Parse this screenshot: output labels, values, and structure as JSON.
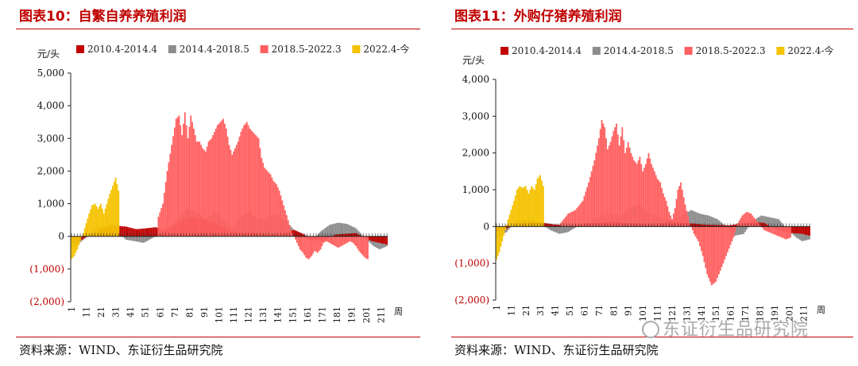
{
  "source": "资料来源：WIND、东证衍生品研究院",
  "watermark": "东证衍生品研究院",
  "colors": {
    "s1": "#c00000",
    "s2": "#8c8c8c",
    "s3": "#ff6060",
    "s4": "#f5c200",
    "title": "#c00000"
  },
  "chart_data": [
    {
      "type": "bar",
      "title": "图表10：自繁自养养殖利润",
      "ylabel": "元/头",
      "xlabel": "周",
      "ylim": [
        -2000,
        5000
      ],
      "yticks": [
        5000,
        4000,
        3000,
        2000,
        1000,
        0,
        -1000,
        -2000
      ],
      "ytick_labels": [
        "5,000",
        "4,000",
        "3,000",
        "2,000",
        "1,000",
        "0",
        "(1,000)",
        "(2,000)"
      ],
      "xticks": [
        "1",
        "11",
        "21",
        "31",
        "41",
        "51",
        "61",
        "71",
        "81",
        "91",
        "101",
        "111",
        "121",
        "131",
        "141",
        "151",
        "161",
        "171",
        "181",
        "191",
        "201",
        "211"
      ],
      "x_count": 215,
      "series": [
        {
          "name": "2010.4-2014.4",
          "color": "#c00000",
          "x": [
            1,
            8,
            14,
            20,
            27,
            33,
            38,
            45,
            52,
            58,
            64,
            71,
            77,
            83,
            89,
            96,
            103,
            110,
            116,
            120,
            125,
            132,
            138,
            145,
            152,
            158,
            165,
            172,
            180,
            188,
            194,
            200,
            205,
            210,
            215
          ],
          "values": [
            -200,
            -100,
            50,
            200,
            350,
            320,
            300,
            220,
            250,
            280,
            200,
            350,
            500,
            600,
            550,
            450,
            300,
            150,
            120,
            100,
            120,
            80,
            60,
            100,
            200,
            80,
            -100,
            -150,
            50,
            80,
            100,
            -50,
            -150,
            -200,
            -250
          ]
        },
        {
          "name": "2014.4-2018.5",
          "color": "#8c8c8c",
          "x": [
            1,
            8,
            14,
            20,
            26,
            32,
            38,
            44,
            50,
            56,
            62,
            68,
            74,
            80,
            86,
            92,
            98,
            104,
            110,
            116,
            122,
            128,
            134,
            140,
            146,
            152,
            158,
            164,
            170,
            176,
            182,
            188,
            194,
            200,
            206,
            210,
            215
          ],
          "values": [
            -350,
            -150,
            100,
            300,
            250,
            150,
            -100,
            -150,
            -200,
            -50,
            100,
            300,
            550,
            850,
            750,
            500,
            800,
            500,
            250,
            600,
            750,
            500,
            600,
            700,
            500,
            200,
            0,
            -150,
            150,
            350,
            420,
            380,
            250,
            -50,
            -300,
            -400,
            -300
          ]
        },
        {
          "name": "2018.5-2022.3",
          "color": "#ff6060",
          "x": [
            60,
            63,
            66,
            69,
            72,
            74,
            76,
            78,
            80,
            82,
            84,
            86,
            88,
            90,
            92,
            94,
            96,
            98,
            100,
            102,
            104,
            106,
            108,
            110,
            112,
            114,
            116,
            118,
            120,
            122,
            124,
            126,
            128,
            130,
            132,
            134,
            136,
            138,
            140,
            142,
            144,
            146,
            148,
            150,
            152,
            154,
            156,
            158,
            160,
            162,
            164,
            166,
            168,
            170,
            172,
            174,
            176,
            178,
            180,
            182,
            184,
            186,
            188,
            190,
            192,
            194,
            196,
            198,
            200,
            202
          ],
          "values": [
            600,
            1000,
            2000,
            2800,
            3600,
            3700,
            3100,
            3800,
            3000,
            3700,
            3300,
            2900,
            2900,
            2700,
            2600,
            2900,
            3000,
            3200,
            3400,
            3500,
            3600,
            3300,
            2800,
            2500,
            2700,
            2900,
            3200,
            3400,
            3500,
            3300,
            3200,
            3100,
            3000,
            2400,
            2100,
            2000,
            1900,
            1700,
            1600,
            1400,
            1100,
            800,
            500,
            200,
            0,
            -200,
            -400,
            -500,
            -650,
            -700,
            -600,
            -450,
            -500,
            -400,
            -200,
            -150,
            -200,
            -250,
            -300,
            -350,
            -300,
            -250,
            -200,
            -150,
            -200,
            -300,
            -450,
            -550,
            -650,
            -700
          ]
        },
        {
          "name": "2022.4-今",
          "color": "#f5c200",
          "x": [
            1,
            3,
            5,
            7,
            9,
            11,
            13,
            15,
            17,
            19,
            21,
            23,
            25,
            27,
            29,
            31,
            33
          ],
          "values": [
            -700,
            -600,
            -400,
            -150,
            100,
            400,
            700,
            950,
            1000,
            850,
            1000,
            700,
            1000,
            1300,
            1550,
            1800,
            1400
          ]
        }
      ]
    },
    {
      "type": "bar",
      "title": "图表11：外购仔猪养殖利润",
      "ylabel": "元/头",
      "xlabel": "周",
      "ylim": [
        -2000,
        4000
      ],
      "yticks": [
        4000,
        3000,
        2000,
        1000,
        0,
        -1000,
        -2000
      ],
      "ytick_labels": [
        "4,000",
        "3,000",
        "2,000",
        "1,000",
        "0",
        "(1,000)",
        "(2,000)"
      ],
      "xticks": [
        "1",
        "11",
        "21",
        "31",
        "41",
        "51",
        "61",
        "71",
        "81",
        "91",
        "101",
        "111",
        "121",
        "131",
        "141",
        "151",
        "161",
        "171",
        "181",
        "191",
        "201",
        "211"
      ],
      "x_count": 215,
      "series": [
        {
          "name": "2010.4-2014.4",
          "color": "#c00000",
          "x": [
            1,
            8,
            14,
            20,
            27,
            33,
            40,
            48,
            56,
            64,
            72,
            80,
            88,
            96,
            104,
            112,
            120,
            128,
            136,
            144,
            152,
            160,
            168,
            176,
            184,
            192,
            198,
            204,
            210,
            215
          ],
          "values": [
            -150,
            -50,
            50,
            100,
            150,
            100,
            60,
            40,
            50,
            80,
            100,
            150,
            100,
            80,
            60,
            50,
            150,
            100,
            80,
            50,
            40,
            30,
            80,
            120,
            100,
            -80,
            -150,
            -180,
            -200,
            -250
          ]
        },
        {
          "name": "2014.4-2018.5",
          "color": "#8c8c8c",
          "x": [
            1,
            8,
            14,
            20,
            26,
            32,
            38,
            44,
            50,
            56,
            62,
            68,
            74,
            80,
            86,
            92,
            98,
            104,
            110,
            116,
            122,
            128,
            134,
            140,
            146,
            152,
            158,
            164,
            170,
            176,
            182,
            188,
            194,
            200,
            206,
            210,
            215
          ],
          "values": [
            -300,
            -150,
            150,
            200,
            150,
            50,
            -100,
            -200,
            -150,
            0,
            100,
            200,
            300,
            350,
            300,
            500,
            600,
            400,
            300,
            200,
            150,
            300,
            450,
            350,
            300,
            200,
            0,
            -250,
            -200,
            150,
            300,
            250,
            200,
            -100,
            -300,
            -400,
            -350
          ]
        },
        {
          "name": "2018.5-2022.3",
          "color": "#ff6060",
          "x": [
            45,
            50,
            55,
            60,
            64,
            68,
            71,
            73,
            75,
            77,
            79,
            81,
            83,
            85,
            87,
            89,
            91,
            93,
            95,
            97,
            99,
            101,
            103,
            105,
            107,
            109,
            111,
            113,
            115,
            117,
            119,
            121,
            123,
            125,
            127,
            130,
            133,
            136,
            139,
            142,
            145,
            148,
            151,
            154,
            157,
            160,
            163,
            166,
            169,
            172,
            175,
            178,
            181,
            184,
            187,
            190,
            193,
            196,
            199,
            202
          ],
          "values": [
            100,
            350,
            450,
            700,
            1200,
            1800,
            2400,
            2900,
            2700,
            2100,
            2300,
            2600,
            2800,
            2200,
            2700,
            2000,
            2300,
            2000,
            1800,
            1700,
            1900,
            1500,
            1700,
            2000,
            1700,
            1500,
            1300,
            1200,
            900,
            700,
            400,
            200,
            500,
            1000,
            1200,
            600,
            100,
            -200,
            -400,
            -800,
            -1300,
            -1600,
            -1500,
            -1200,
            -900,
            -600,
            -300,
            100,
            300,
            400,
            350,
            200,
            50,
            -100,
            -150,
            -200,
            -250,
            -300,
            -350,
            -300
          ]
        },
        {
          "name": "2022.4-今",
          "color": "#f5c200",
          "x": [
            1,
            3,
            5,
            7,
            9,
            11,
            13,
            15,
            17,
            19,
            21,
            23,
            25,
            27,
            29,
            31,
            33
          ],
          "values": [
            -900,
            -700,
            -400,
            -100,
            200,
            450,
            700,
            1000,
            1100,
            1050,
            1100,
            900,
            1100,
            1000,
            1300,
            1400,
            1100
          ]
        }
      ]
    }
  ]
}
